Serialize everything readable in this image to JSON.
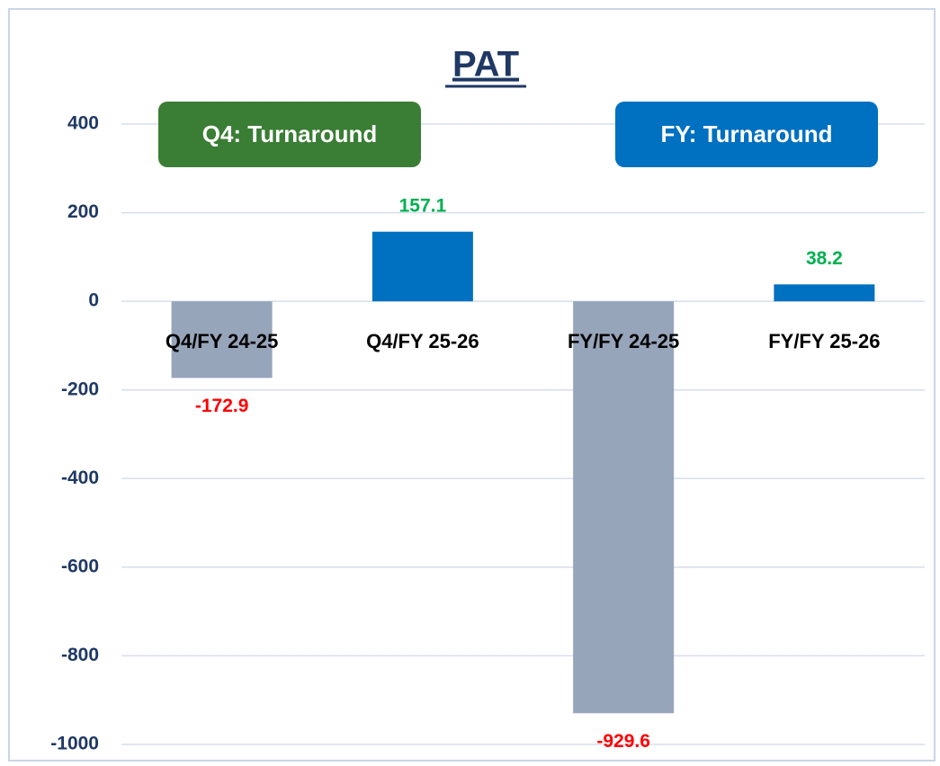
{
  "chart_data": {
    "type": "bar",
    "title": "PAT",
    "categories": [
      "Q4/FY 24-25",
      "Q4/FY 25-26",
      "FY/FY 24-25",
      "FY/FY 25-26"
    ],
    "values": [
      -172.9,
      157.1,
      -929.6,
      38.2
    ],
    "colors": [
      "#97a5bb",
      "#0070c0",
      "#97a5bb",
      "#0070c0"
    ],
    "label_colors": {
      "positive": "#00b050",
      "negative": "#ff0000"
    },
    "ylim": [
      -1000,
      400
    ],
    "yticks": [
      -1000,
      -800,
      -600,
      -400,
      -200,
      0,
      200,
      400
    ],
    "grid": true,
    "annotations": [
      {
        "text": "Q4: Turnaround",
        "color": "#3a7d35"
      },
      {
        "text": "FY: Turnaround",
        "color": "#0070c0"
      }
    ]
  }
}
